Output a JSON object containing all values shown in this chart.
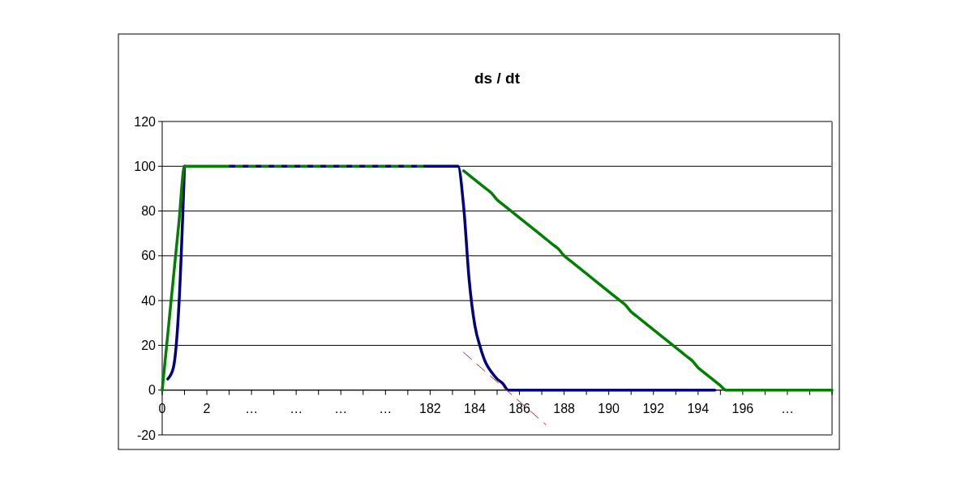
{
  "chart_data": {
    "type": "line",
    "title": "ds / dt",
    "categories": [
      "0",
      null,
      null,
      null,
      null,
      null,
      null,
      null,
      "2",
      null,
      null,
      null,
      null,
      null,
      null,
      null,
      "…",
      null,
      null,
      null,
      null,
      null,
      null,
      null,
      "…",
      null,
      null,
      null,
      null,
      null,
      null,
      null,
      "…",
      null,
      null,
      null,
      null,
      null,
      null,
      null,
      "…",
      null,
      null,
      null,
      null,
      null,
      null,
      null,
      "182",
      null,
      null,
      null,
      null,
      null,
      null,
      null,
      "184",
      null,
      null,
      null,
      null,
      null,
      null,
      null,
      "186",
      null,
      null,
      null,
      null,
      null,
      null,
      null,
      "188",
      null,
      null,
      null,
      null,
      null,
      null,
      null,
      "190",
      null,
      null,
      null,
      null,
      null,
      null,
      null,
      "192",
      null,
      null,
      null,
      null,
      null,
      null,
      null,
      "194",
      null,
      null,
      null,
      null,
      null,
      null,
      null,
      "196",
      null,
      null,
      null,
      null,
      null,
      null,
      null,
      "…",
      null,
      null,
      null,
      null,
      null,
      null,
      null,
      null
    ],
    "ylim": [
      -20,
      120
    ],
    "yticks": [
      -20,
      0,
      20,
      40,
      60,
      80,
      100,
      120
    ],
    "grid": "y",
    "marker": "none",
    "series": [
      {
        "color": "#000080",
        "line_style": "solid",
        "values": [
          null,
          5,
          10,
          38,
          100,
          null,
          null,
          null,
          null,
          null,
          null,
          null,
          null,
          null,
          null,
          null,
          null,
          null,
          null,
          null,
          null,
          null,
          null,
          null,
          null,
          null,
          null,
          null,
          null,
          null,
          null,
          null,
          null,
          null,
          null,
          null,
          null,
          null,
          null,
          null,
          null,
          null,
          null,
          null,
          null,
          null,
          null,
          null,
          null,
          null,
          null,
          null,
          null,
          null,
          null,
          null,
          null,
          null,
          null,
          null,
          null,
          null,
          null,
          null,
          null,
          null,
          null,
          null,
          null,
          null,
          null,
          null,
          null,
          null,
          null,
          null,
          null,
          null,
          null,
          null,
          null,
          null,
          null,
          null,
          null,
          null,
          null,
          null,
          null,
          null,
          null,
          null,
          null,
          null,
          null,
          null,
          null,
          null,
          null,
          null,
          null,
          null,
          null,
          null,
          null,
          null,
          null,
          null,
          null,
          null,
          null,
          null,
          null,
          null,
          null,
          null,
          null,
          null,
          null,
          null,
          null
        ]
      },
      {
        "color": "#008000",
        "line_style": "solid",
        "values": [
          0,
          25,
          50,
          75,
          100,
          100,
          100,
          100,
          100,
          100,
          100,
          100,
          100,
          null,
          null,
          null,
          null,
          null,
          null,
          null,
          null,
          null,
          null,
          null,
          null,
          null,
          null,
          null,
          null,
          null,
          null,
          null,
          null,
          null,
          null,
          null,
          null,
          null,
          null,
          null,
          null,
          null,
          null,
          null,
          null,
          null,
          null,
          null,
          null,
          null,
          null,
          null,
          null,
          null,
          null,
          null,
          null,
          null,
          null,
          null,
          null,
          null,
          null,
          null,
          null,
          null,
          null,
          null,
          null,
          null,
          null,
          null,
          null,
          null,
          null,
          null,
          null,
          null,
          null,
          null,
          null,
          null,
          null,
          null,
          null,
          null,
          null,
          null,
          null,
          null,
          null,
          null,
          null,
          null,
          null,
          null,
          null,
          null,
          null,
          null,
          null,
          null,
          null,
          null,
          null,
          null,
          null,
          null,
          null,
          null,
          null,
          null,
          null,
          null,
          null,
          null,
          null,
          null,
          null,
          null,
          null
        ]
      },
      {
        "color": "#000080",
        "line_style": "dashed",
        "values": [
          null,
          null,
          null,
          null,
          null,
          null,
          null,
          null,
          null,
          null,
          null,
          null,
          100,
          100,
          100,
          100,
          100,
          100,
          100,
          100,
          100,
          100,
          100,
          100,
          100,
          100,
          100,
          100,
          100,
          100,
          100,
          100,
          100,
          100,
          100,
          100,
          100,
          100,
          100,
          100,
          100,
          100,
          100,
          100,
          100,
          100,
          100,
          100,
          null,
          null,
          null,
          null,
          null,
          null,
          null,
          null,
          null,
          null,
          null,
          null,
          null,
          null,
          null,
          null,
          null,
          null,
          null,
          null,
          null,
          null,
          null,
          null,
          null,
          null,
          null,
          null,
          null,
          null,
          null,
          null,
          null,
          null,
          null,
          null,
          null,
          null,
          null,
          null,
          null,
          null,
          null,
          null,
          null,
          null,
          null,
          null,
          null,
          null,
          null,
          null,
          null,
          null,
          null,
          null,
          null,
          null,
          null,
          null,
          null,
          null,
          null,
          null,
          null,
          null,
          null,
          null,
          null,
          null,
          null,
          null,
          null
        ]
      },
      {
        "color": "#008000",
        "line_style": "dashed",
        "values": [
          null,
          null,
          null,
          null,
          null,
          null,
          null,
          null,
          null,
          null,
          null,
          null,
          100,
          100,
          100,
          100,
          100,
          100,
          100,
          100,
          100,
          100,
          100,
          100,
          100,
          100,
          100,
          100,
          100,
          100,
          100,
          100,
          100,
          100,
          100,
          100,
          100,
          100,
          100,
          100,
          100,
          100,
          100,
          100,
          100,
          100,
          100,
          100,
          null,
          null,
          null,
          null,
          null,
          null,
          null,
          null,
          null,
          null,
          null,
          null,
          null,
          null,
          null,
          null,
          null,
          null,
          null,
          null,
          null,
          null,
          null,
          null,
          null,
          null,
          null,
          null,
          null,
          null,
          null,
          null,
          null,
          null,
          null,
          null,
          null,
          null,
          null,
          null,
          null,
          null,
          null,
          null,
          null,
          null,
          null,
          null,
          null,
          null,
          null,
          null,
          null,
          null,
          null,
          null,
          null,
          null,
          null,
          null,
          null,
          null,
          null,
          null,
          null,
          null,
          null,
          null,
          null,
          null,
          null,
          null,
          null
        ]
      },
      {
        "color": "#008000",
        "line_style": "solid",
        "values": [
          null,
          null,
          null,
          null,
          null,
          null,
          null,
          null,
          null,
          null,
          null,
          null,
          null,
          null,
          null,
          null,
          null,
          null,
          null,
          null,
          null,
          null,
          null,
          null,
          null,
          null,
          null,
          null,
          null,
          null,
          null,
          null,
          null,
          null,
          null,
          null,
          null,
          null,
          null,
          null,
          null,
          null,
          null,
          null,
          null,
          null,
          null,
          null,
          null,
          null,
          null,
          null,
          null,
          null,
          98,
          96,
          94,
          92,
          90,
          88,
          85,
          83,
          81,
          79,
          77,
          75,
          73,
          71,
          69,
          67,
          65,
          63,
          60,
          58,
          56,
          54,
          52,
          50,
          48,
          46,
          44,
          42,
          40,
          38,
          35,
          33,
          31,
          29,
          27,
          25,
          23,
          21,
          19,
          17,
          15,
          13,
          10,
          8,
          6,
          4,
          2,
          0,
          0,
          0,
          0,
          0,
          0,
          0,
          0,
          0,
          0,
          0,
          0,
          0,
          0,
          0,
          0,
          0,
          0,
          0,
          0
        ]
      },
      {
        "color": "#000080",
        "line_style": "solid",
        "values": [
          null,
          null,
          null,
          null,
          null,
          null,
          null,
          null,
          null,
          null,
          null,
          null,
          null,
          null,
          null,
          null,
          null,
          null,
          null,
          null,
          null,
          null,
          null,
          null,
          null,
          null,
          null,
          null,
          null,
          null,
          null,
          null,
          null,
          null,
          null,
          null,
          null,
          null,
          null,
          null,
          null,
          null,
          null,
          null,
          null,
          null,
          null,
          100,
          100,
          100,
          100,
          100,
          100,
          100,
          82,
          49,
          29,
          19,
          12,
          8,
          5,
          3,
          0,
          0,
          0,
          0,
          0,
          0,
          0,
          0,
          0,
          0,
          0,
          0,
          0,
          0,
          0,
          0,
          0,
          0,
          0,
          0,
          0,
          0,
          0,
          0,
          0,
          0,
          0,
          0,
          0,
          0,
          0,
          0,
          0,
          0,
          0,
          0,
          0,
          0,
          null,
          null,
          null,
          null,
          null,
          null,
          null,
          null,
          null,
          null,
          null,
          null,
          null,
          null,
          null,
          null,
          null,
          null,
          null,
          null,
          null
        ]
      }
    ]
  }
}
